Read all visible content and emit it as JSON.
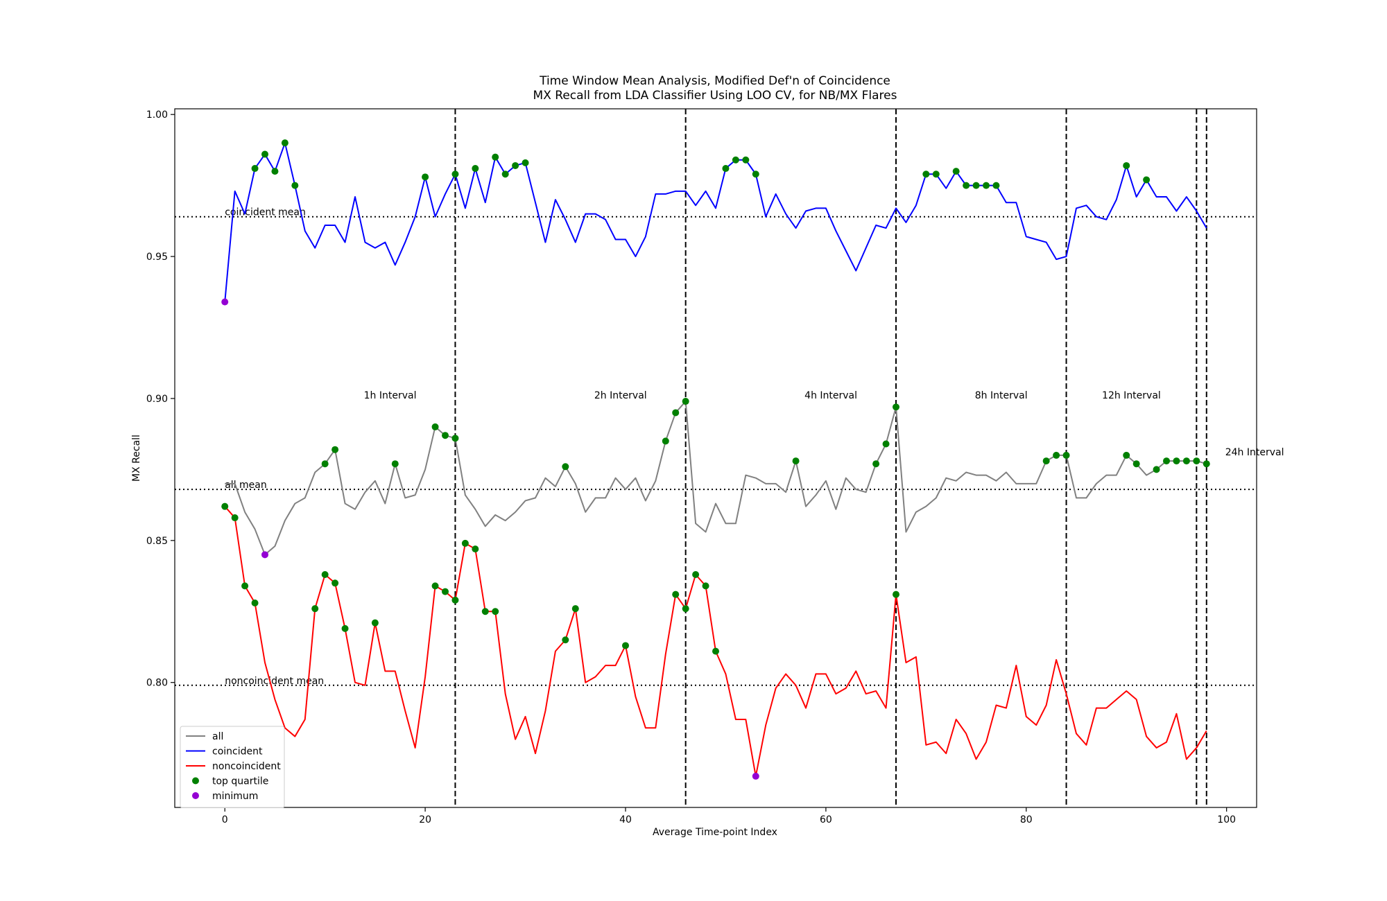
{
  "chart_data": {
    "type": "line",
    "title": "Time Window Mean Analysis, Modified Def'n of Coincidence",
    "subtitle": "MX Recall from LDA Classifier Using LOO CV, for NB/MX Flares",
    "xlabel": "Average Time-point Index",
    "ylabel": "MX Recall",
    "xlim": [
      -5,
      103
    ],
    "ylim": [
      0.756,
      1.002
    ],
    "xticks": [
      0,
      20,
      40,
      60,
      80,
      100
    ],
    "xtick_labels": [
      "0",
      "20",
      "40",
      "60",
      "80",
      "100"
    ],
    "yticks": [
      0.8,
      0.85,
      0.9,
      0.95,
      1.0
    ],
    "ytick_labels": [
      "0.80",
      "0.85",
      "0.90",
      "0.95",
      "1.00"
    ],
    "grid": false,
    "legend_position": "lower-left",
    "legend": [
      {
        "label": "all",
        "kind": "line",
        "color": "#808080"
      },
      {
        "label": "coincident",
        "kind": "line",
        "color": "#0000ff"
      },
      {
        "label": "noncoincident",
        "kind": "line",
        "color": "#ff0000"
      },
      {
        "label": "top quartile",
        "kind": "marker",
        "color": "#008000"
      },
      {
        "label": "minimum",
        "kind": "marker",
        "color": "#9400d3"
      }
    ],
    "series": [
      {
        "name": "all",
        "color": "#808080",
        "values": [
          0.87,
          0.87,
          0.86,
          0.854,
          0.845,
          0.848,
          0.857,
          0.863,
          0.865,
          0.874,
          0.877,
          0.882,
          0.863,
          0.861,
          0.867,
          0.871,
          0.863,
          0.877,
          0.865,
          0.866,
          0.875,
          0.89,
          0.887,
          0.886,
          0.866,
          0.861,
          0.855,
          0.859,
          0.857,
          0.86,
          0.864,
          0.865,
          0.872,
          0.869,
          0.876,
          0.87,
          0.86,
          0.865,
          0.865,
          0.872,
          0.868,
          0.872,
          0.864,
          0.871,
          0.885,
          0.895,
          0.899,
          0.856,
          0.853,
          0.863,
          0.856,
          0.856,
          0.873,
          0.872,
          0.87,
          0.87,
          0.867,
          0.878,
          0.862,
          0.866,
          0.871,
          0.861,
          0.872,
          0.868,
          0.867,
          0.877,
          0.884,
          0.897,
          0.853,
          0.86,
          0.862,
          0.865,
          0.872,
          0.871,
          0.874,
          0.873,
          0.873,
          0.871,
          0.874,
          0.87,
          0.87,
          0.87,
          0.878,
          0.88,
          0.88,
          0.865,
          0.865,
          0.87,
          0.873,
          0.873,
          0.88,
          0.877,
          0.873,
          0.875,
          0.878,
          0.878,
          0.878,
          0.878,
          0.877
        ]
      },
      {
        "name": "coincident",
        "color": "#0000ff",
        "values": [
          0.934,
          0.973,
          0.965,
          0.981,
          0.986,
          0.98,
          0.99,
          0.975,
          0.959,
          0.953,
          0.961,
          0.961,
          0.955,
          0.971,
          0.955,
          0.953,
          0.955,
          0.947,
          0.955,
          0.964,
          0.978,
          0.964,
          0.972,
          0.979,
          0.967,
          0.981,
          0.969,
          0.985,
          0.979,
          0.982,
          0.983,
          0.969,
          0.955,
          0.97,
          0.963,
          0.955,
          0.965,
          0.965,
          0.963,
          0.956,
          0.956,
          0.95,
          0.957,
          0.972,
          0.972,
          0.973,
          0.973,
          0.968,
          0.973,
          0.967,
          0.981,
          0.984,
          0.984,
          0.979,
          0.964,
          0.972,
          0.965,
          0.96,
          0.966,
          0.967,
          0.967,
          0.959,
          0.952,
          0.945,
          0.953,
          0.961,
          0.96,
          0.967,
          0.962,
          0.968,
          0.979,
          0.979,
          0.974,
          0.98,
          0.975,
          0.975,
          0.975,
          0.975,
          0.969,
          0.969,
          0.957,
          0.956,
          0.955,
          0.949,
          0.95,
          0.967,
          0.968,
          0.964,
          0.963,
          0.97,
          0.982,
          0.971,
          0.977,
          0.971,
          0.971,
          0.966,
          0.971,
          0.966,
          0.96
        ]
      },
      {
        "name": "noncoincident",
        "color": "#ff0000",
        "values": [
          0.862,
          0.858,
          0.834,
          0.828,
          0.807,
          0.794,
          0.784,
          0.781,
          0.787,
          0.826,
          0.838,
          0.835,
          0.819,
          0.8,
          0.799,
          0.821,
          0.804,
          0.804,
          0.79,
          0.777,
          0.802,
          0.834,
          0.832,
          0.829,
          0.849,
          0.847,
          0.825,
          0.825,
          0.796,
          0.78,
          0.788,
          0.775,
          0.79,
          0.811,
          0.815,
          0.826,
          0.8,
          0.802,
          0.806,
          0.806,
          0.813,
          0.795,
          0.784,
          0.784,
          0.81,
          0.831,
          0.826,
          0.838,
          0.834,
          0.811,
          0.803,
          0.787,
          0.787,
          0.767,
          0.785,
          0.798,
          0.803,
          0.799,
          0.791,
          0.803,
          0.803,
          0.796,
          0.798,
          0.804,
          0.796,
          0.797,
          0.791,
          0.831,
          0.807,
          0.809,
          0.778,
          0.779,
          0.775,
          0.787,
          0.782,
          0.773,
          0.779,
          0.792,
          0.791,
          0.806,
          0.788,
          0.785,
          0.792,
          0.808,
          0.796,
          0.782,
          0.778,
          0.791,
          0.791,
          0.794,
          0.797,
          0.794,
          0.781,
          0.777,
          0.779,
          0.789,
          0.773,
          0.777,
          0.783
        ]
      }
    ],
    "top_quartile_points": [
      {
        "series": "coincident",
        "x": [
          3,
          4,
          5,
          6,
          7,
          20,
          23,
          25,
          27,
          28,
          29,
          30,
          50,
          51,
          52,
          53,
          70,
          71,
          73,
          74,
          75,
          76,
          77,
          90,
          92
        ]
      },
      {
        "series": "all",
        "x": [
          10,
          11,
          17,
          21,
          22,
          23,
          34,
          44,
          45,
          46,
          57,
          65,
          66,
          67,
          82,
          83,
          84,
          90,
          91,
          93,
          94,
          95,
          96,
          97,
          98
        ]
      },
      {
        "series": "noncoincident",
        "x": [
          0,
          1,
          2,
          3,
          9,
          10,
          11,
          12,
          15,
          21,
          22,
          23,
          24,
          25,
          26,
          27,
          34,
          35,
          40,
          45,
          46,
          47,
          48,
          49,
          67
        ]
      }
    ],
    "minimum_points": [
      {
        "series": "coincident",
        "x": 0,
        "y": 0.934
      },
      {
        "series": "all",
        "x": 4,
        "y": 0.845
      },
      {
        "series": "noncoincident",
        "x": 53,
        "y": 0.767
      }
    ],
    "mean_lines": [
      {
        "label": "coincident mean",
        "y": 0.964
      },
      {
        "label": "all mean",
        "y": 0.868
      },
      {
        "label": "noncoincident mean",
        "y": 0.799
      }
    ],
    "interval_boundaries": [
      23,
      46,
      67,
      84,
      97,
      98
    ],
    "interval_labels": [
      {
        "label": "1h Interval",
        "x": 16.5,
        "y": 0.9
      },
      {
        "label": "2h Interval",
        "x": 39.5,
        "y": 0.9
      },
      {
        "label": "4h Interval",
        "x": 60.5,
        "y": 0.9
      },
      {
        "label": "8h Interval",
        "x": 77.5,
        "y": 0.9
      },
      {
        "label": "12h Interval",
        "x": 90.5,
        "y": 0.9
      },
      {
        "label": "24h Interval",
        "x": 102.8,
        "y": 0.88
      }
    ]
  }
}
